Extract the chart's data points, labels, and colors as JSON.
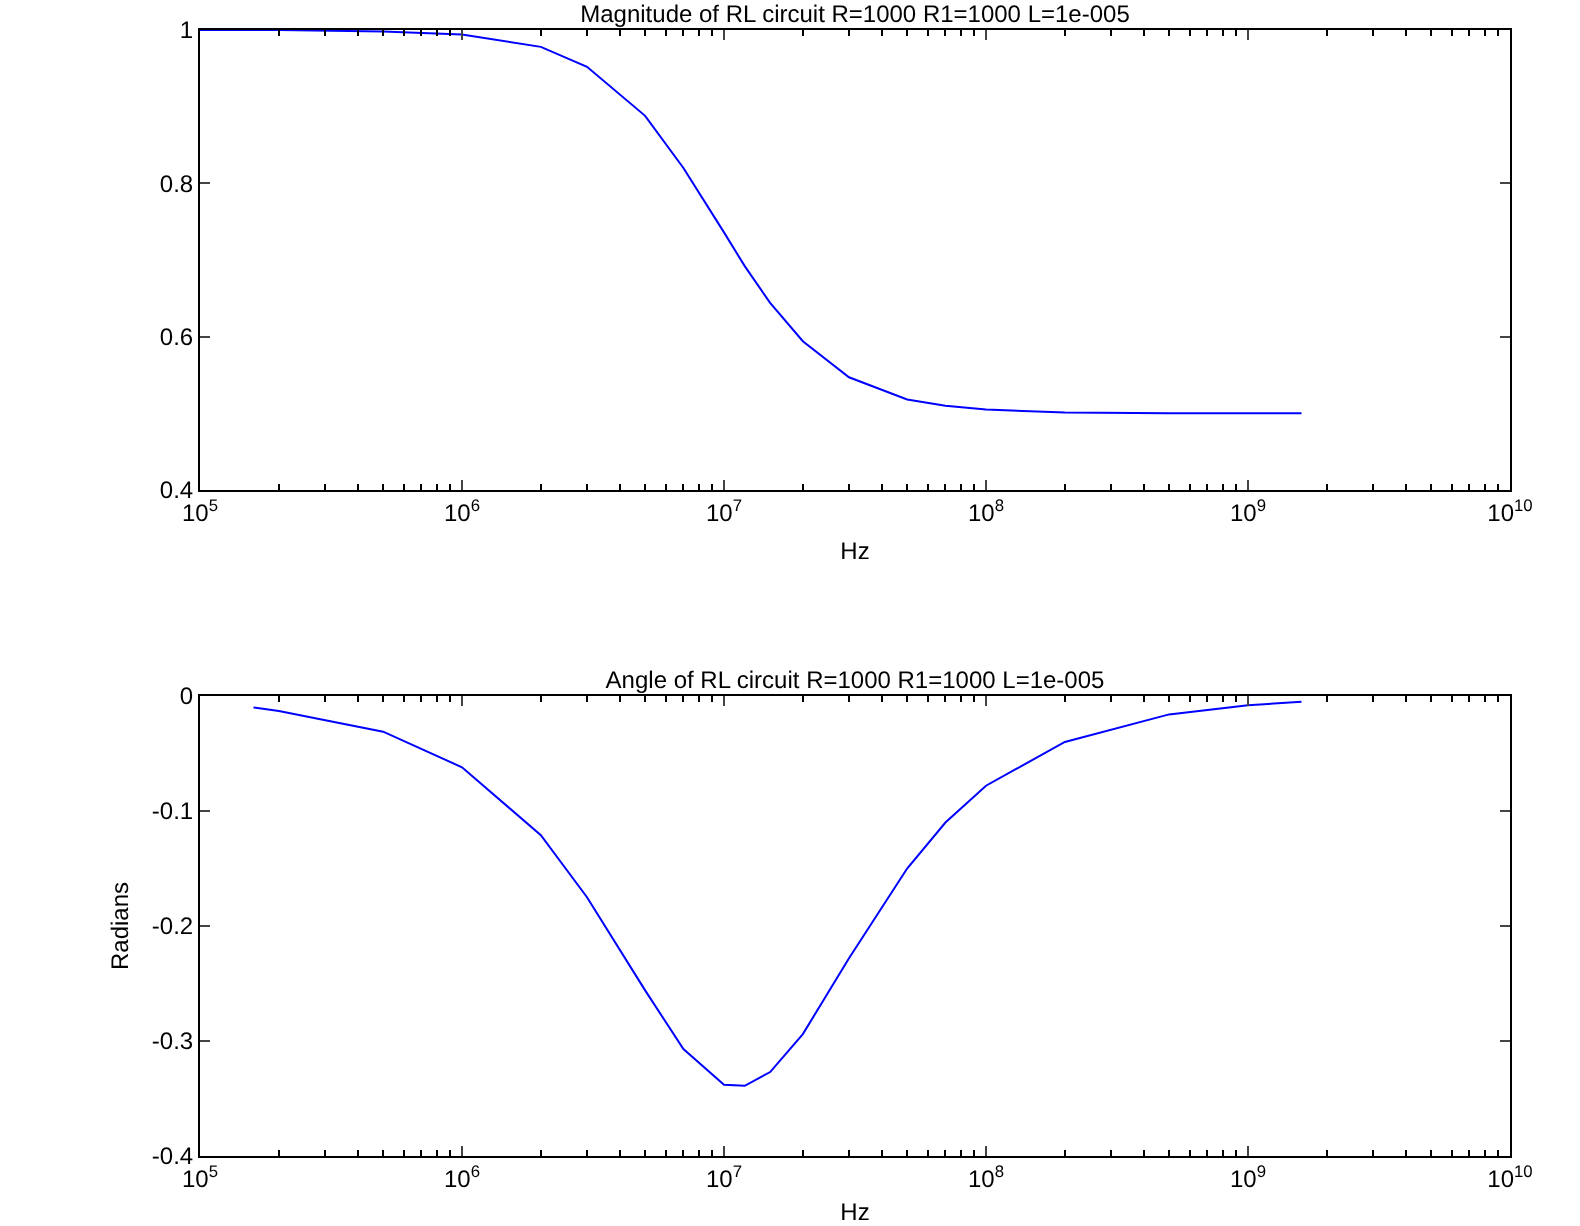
{
  "chart_data": [
    {
      "type": "line",
      "title": "Magnitude of RL circuit R=1000 R1=1000 L=1e-005",
      "xlabel": "Hz",
      "log": "x",
      "color": "#0000ff",
      "x": [
        100000,
        200000,
        500000,
        1000000,
        2000000,
        3000000,
        5000000,
        7000000,
        10000000,
        12000000,
        15000000,
        20000000,
        30000000,
        50000000,
        70000000,
        100000000,
        200000000,
        500000000,
        1000000000,
        1600000000
      ],
      "values": [
        1.0,
        1.0,
        0.998,
        0.994,
        0.978,
        0.952,
        0.888,
        0.82,
        0.736,
        0.692,
        0.644,
        0.594,
        0.547,
        0.518,
        0.51,
        0.505,
        0.501,
        0.5,
        0.5,
        0.5
      ],
      "xlim": [
        100000,
        10000000000
      ],
      "xticks": [
        {
          "value": 100000,
          "label": "10$^{5}$"
        },
        {
          "value": 1000000,
          "label": "10$^{6}$"
        },
        {
          "value": 10000000,
          "label": "10$^{7}$"
        },
        {
          "value": 100000000,
          "label": "10$^{8}$"
        },
        {
          "value": 1000000000,
          "label": "10$^{9}$"
        },
        {
          "value": 10000000000,
          "label": "10$^{10}$"
        }
      ],
      "ylim": [
        0.4,
        1
      ],
      "yticks": [
        0.4,
        0.6,
        0.8,
        1
      ]
    },
    {
      "type": "line",
      "title": "Angle of RL circuit R=1000 R1=1000 L=1e-005",
      "xlabel": "Hz",
      "ylabel": "Radians",
      "log": "x",
      "color": "#0000ff",
      "x": [
        160000,
        200000,
        500000,
        1000000,
        2000000,
        3000000,
        5000000,
        7000000,
        10000000,
        12000000,
        15000000,
        20000000,
        30000000,
        50000000,
        70000000,
        100000000,
        200000000,
        500000000,
        1000000000,
        1600000000
      ],
      "values": [
        -0.01,
        -0.013,
        -0.031,
        -0.062,
        -0.121,
        -0.175,
        -0.256,
        -0.307,
        -0.338,
        -0.339,
        -0.327,
        -0.294,
        -0.228,
        -0.15,
        -0.11,
        -0.078,
        -0.04,
        -0.016,
        -0.008,
        -0.005
      ],
      "xlim": [
        100000,
        10000000000
      ],
      "xticks": [
        {
          "value": 100000,
          "label": "10$^{5}$"
        },
        {
          "value": 1000000,
          "label": "10$^{6}$"
        },
        {
          "value": 10000000,
          "label": "10$^{7}$"
        },
        {
          "value": 100000000,
          "label": "10$^{8}$"
        },
        {
          "value": 1000000000,
          "label": "10$^{9}$"
        },
        {
          "value": 10000000000,
          "label": "10$^{10}$"
        }
      ],
      "ylim": [
        -0.4,
        0
      ],
      "yticks": [
        -0.4,
        -0.3,
        -0.2,
        -0.1,
        0
      ]
    }
  ]
}
